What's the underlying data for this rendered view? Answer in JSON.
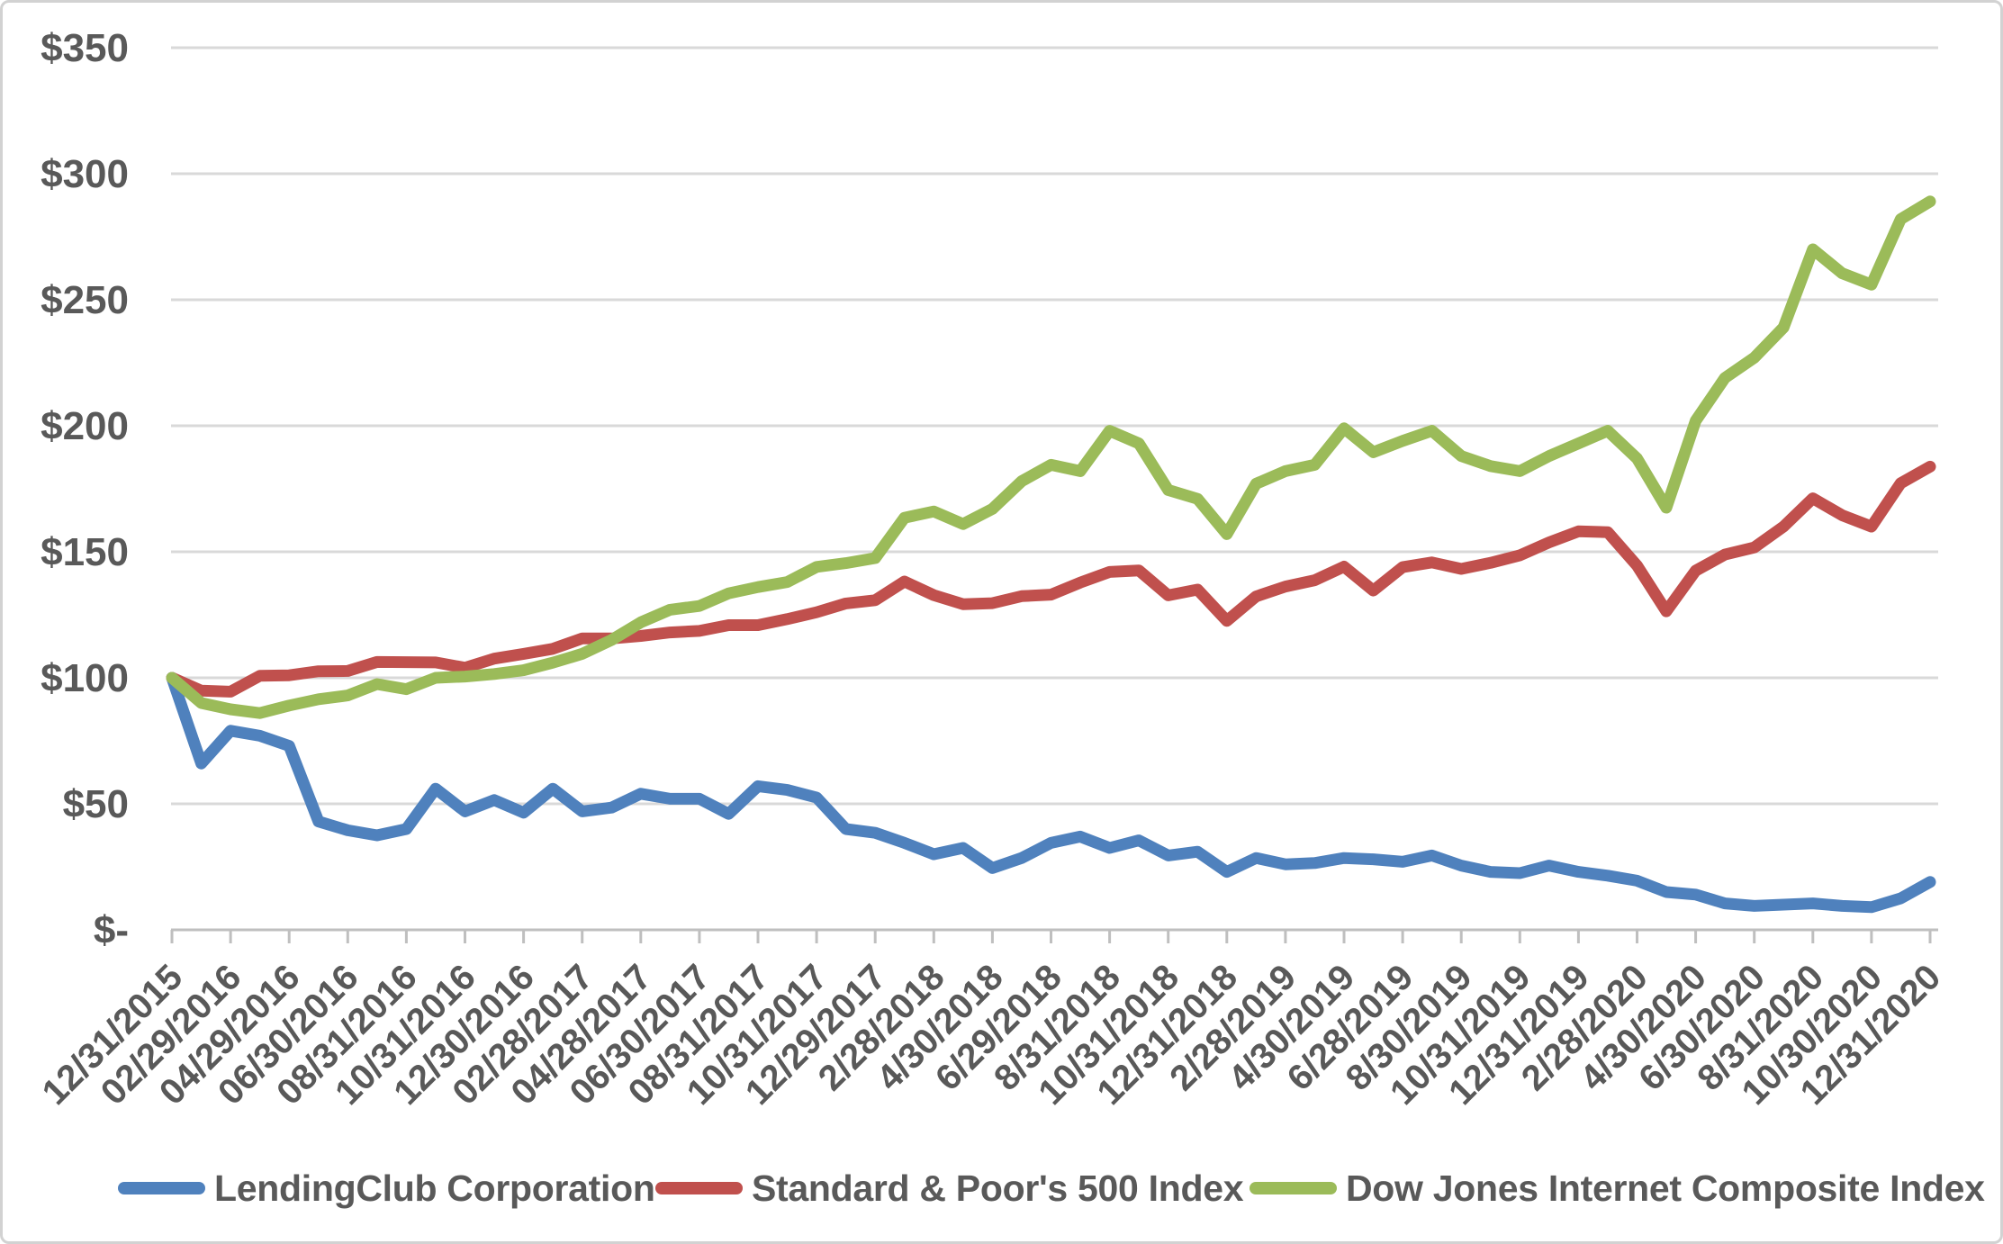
{
  "chart_data": {
    "type": "line",
    "title": "",
    "grid": "horizontal",
    "legend_position": "bottom",
    "y_axis": {
      "min": 0,
      "max": 350,
      "step": 50,
      "tick_labels": [
        "$-",
        "$50",
        "$100",
        "$150",
        "$200",
        "$250",
        "$300",
        "$350"
      ]
    },
    "x_tick_labels": [
      "12/31/2015",
      "02/29/2016",
      "04/29/2016",
      "06/30/2016",
      "08/31/2016",
      "10/31/2016",
      "12/30/2016",
      "02/28/2017",
      "04/28/2017",
      "06/30/2017",
      "08/31/2017",
      "10/31/2017",
      "12/29/2017",
      "2/28/2018",
      "4/30/2018",
      "6/29/2018",
      "8/31/2018",
      "10/31/2018",
      "12/31/2018",
      "2/28/2019",
      "4/30/2019",
      "6/28/2019",
      "8/30/2019",
      "10/31/2019",
      "12/31/2019",
      "2/28/2020",
      "4/30/2020",
      "6/30/2020",
      "8/31/2020",
      "10/30/2020",
      "12/31/2020"
    ],
    "months_per_tick": 2,
    "series": [
      {
        "name": "LendingClub Corporation",
        "color": "#4F81BD",
        "values": [
          100,
          66,
          79,
          77,
          73,
          43,
          39.5,
          37.5,
          40,
          56,
          47,
          51.5,
          46.5,
          56,
          47,
          48.5,
          54,
          52,
          52,
          46,
          57,
          55.5,
          52.5,
          40,
          38.5,
          34.5,
          30,
          32.5,
          24.5,
          28.5,
          34.5,
          37,
          32.5,
          35.5,
          29.5,
          31,
          23,
          28.5,
          26,
          26.5,
          28.5,
          28,
          27,
          29.5,
          25.5,
          23,
          22.5,
          25.5,
          23,
          21.5,
          19.5,
          15,
          14,
          10.5,
          9.5,
          10,
          10.5,
          9.5,
          9,
          12.5,
          19
        ]
      },
      {
        "name": "Standard & Poor's 500 Index",
        "color": "#C0504D",
        "values": [
          100,
          94.9,
          94.5,
          100.8,
          101,
          102.6,
          102.7,
          106.3,
          106.2,
          106.1,
          104,
          107.6,
          109.5,
          111.5,
          115.6,
          115.6,
          116.6,
          118,
          118.6,
          120.9,
          120.9,
          123.3,
          126,
          129.5,
          130.8,
          138.2,
          132.8,
          129.2,
          129.6,
          132.4,
          133,
          137.8,
          142,
          142.6,
          132.7,
          135,
          122.6,
          132.3,
          136.2,
          138.7,
          144.1,
          134.6,
          143.9,
          145.8,
          143.2,
          145.6,
          148.6,
          153.7,
          158.1,
          157.8,
          144.5,
          126.4,
          142.5,
          148.9,
          151.7,
          160,
          171.2,
          164.5,
          160,
          177.2,
          183.8
        ]
      },
      {
        "name": "Dow Jones Internet Composite Index",
        "color": "#9BBB59",
        "values": [
          100,
          90,
          87.5,
          86,
          89,
          91.5,
          93,
          97.5,
          95.5,
          100,
          100.5,
          101.5,
          103,
          106,
          109.5,
          115,
          122,
          127,
          128.5,
          133.5,
          136,
          138,
          144,
          145.5,
          147.5,
          163.5,
          166,
          161,
          167,
          178,
          184.5,
          182,
          198,
          193,
          174.5,
          171,
          157,
          177,
          182,
          184.5,
          199,
          189.5,
          194,
          198,
          188,
          184,
          182,
          188,
          193,
          198,
          187,
          167.5,
          202,
          219,
          227,
          239,
          270,
          260.5,
          256,
          282,
          289
        ]
      }
    ],
    "colors": {
      "gridline": "#D9D9D9",
      "axis": "#BFBFBF",
      "label_text": "#595959",
      "border": "#D2D2D2"
    }
  }
}
